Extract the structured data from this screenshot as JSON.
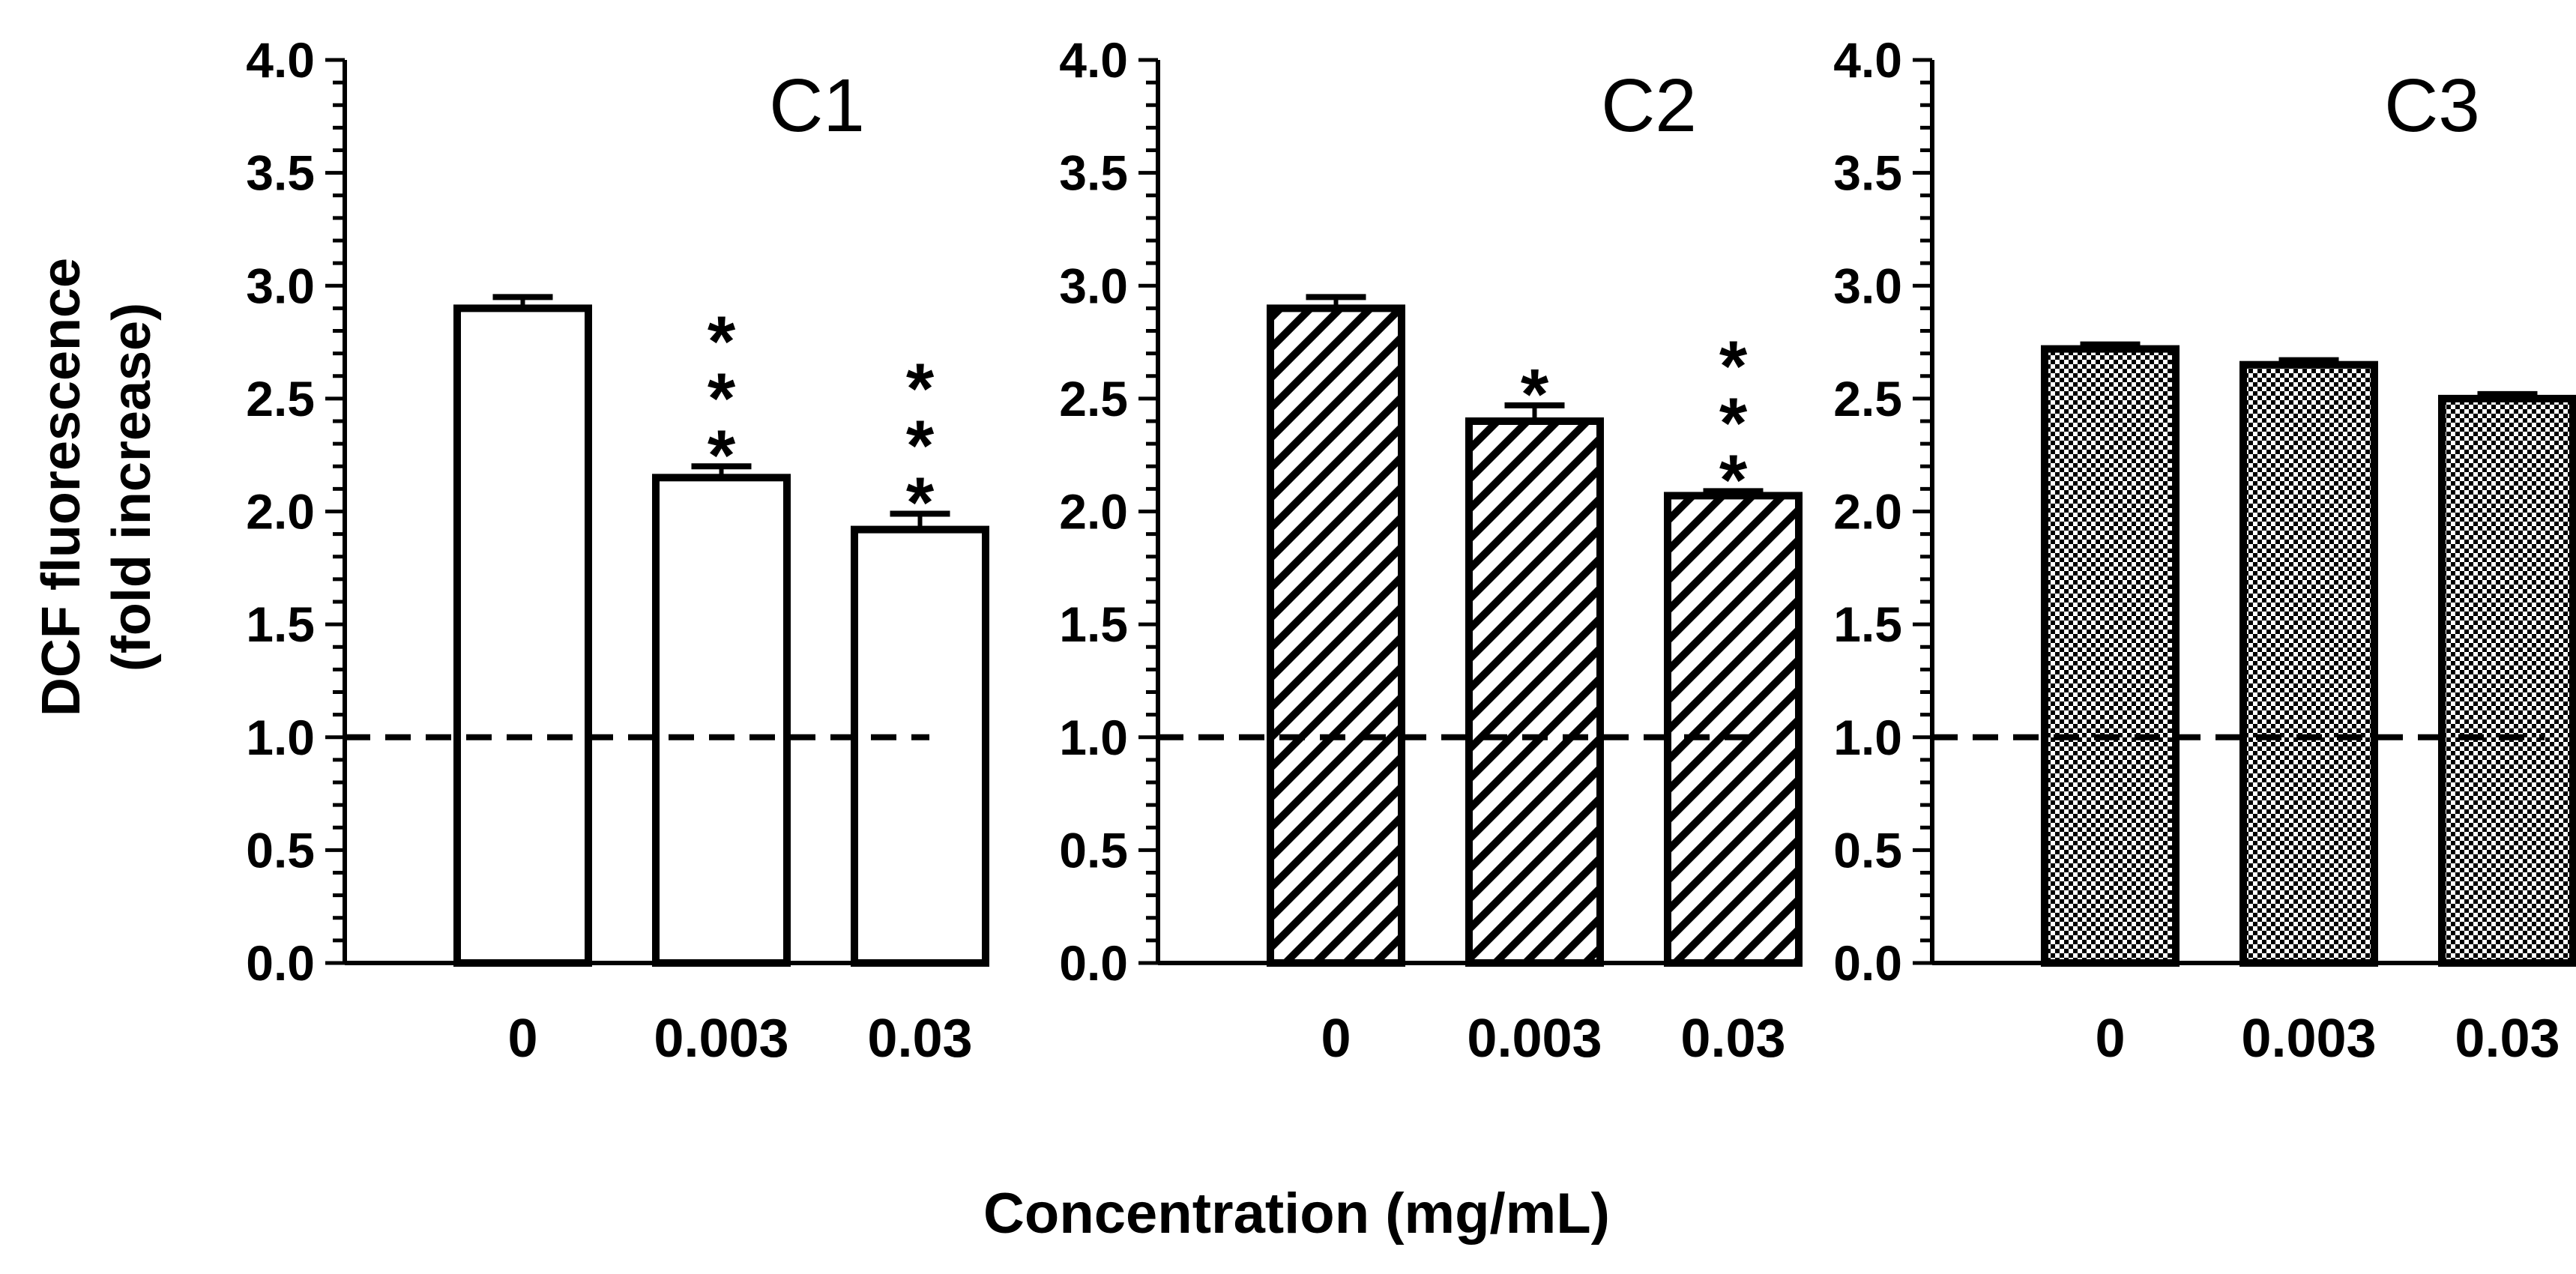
{
  "chart_data": {
    "type": "bar",
    "ylabel_line1": "DCF fluorescence",
    "ylabel_line2": "(fold increase)",
    "xlabel": "Concentration (mg/mL)",
    "ylim": [
      0,
      4.0
    ],
    "y_ticks": [
      "0.0",
      "0.5",
      "1.0",
      "1.5",
      "2.0",
      "2.5",
      "3.0",
      "3.5",
      "4.0"
    ],
    "reference_line": 1.0,
    "categories": [
      "0",
      "0.003",
      "0.03"
    ],
    "panels": [
      {
        "name": "C1",
        "pattern": "open",
        "values": [
          2.9,
          2.15,
          1.92
        ],
        "errors": [
          0.05,
          0.05,
          0.07
        ],
        "significance": [
          "",
          "***",
          "***"
        ]
      },
      {
        "name": "C2",
        "pattern": "hatched",
        "values": [
          2.9,
          2.4,
          2.07
        ],
        "errors": [
          0.05,
          0.07,
          0.02
        ],
        "significance": [
          "",
          "*",
          "***"
        ]
      },
      {
        "name": "C3",
        "pattern": "checkered",
        "values": [
          2.72,
          2.65,
          2.5
        ],
        "errors": [
          0.02,
          0.02,
          0.02
        ],
        "significance": [
          "",
          "",
          ""
        ]
      }
    ]
  }
}
